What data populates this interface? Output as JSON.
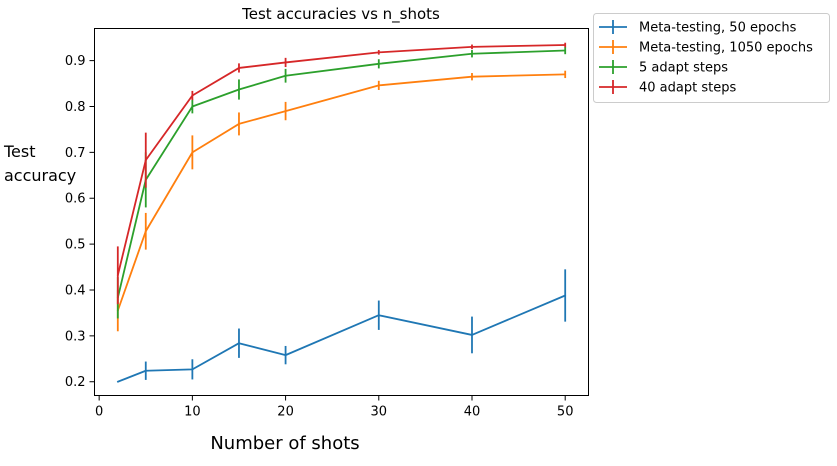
{
  "chart_data": {
    "type": "line",
    "title": "Test accuracies vs n_shots",
    "xlabel": "Number of shots",
    "ylabel_lines": [
      "Test",
      "accuracy"
    ],
    "xlim": [
      -0.5,
      52.5
    ],
    "ylim": [
      0.17,
      0.97
    ],
    "xticks": [
      0,
      10,
      20,
      30,
      40,
      50
    ],
    "yticks": [
      0.2,
      0.3,
      0.4,
      0.5,
      0.6,
      0.7,
      0.8,
      0.9
    ],
    "x": [
      2,
      5,
      10,
      15,
      20,
      30,
      40,
      50
    ],
    "grid": false,
    "legend_position": "outside-right",
    "series": [
      {
        "name": "Meta-testing, 50 epochs",
        "color": "#1f77b4",
        "values": [
          0.2,
          0.224,
          0.227,
          0.284,
          0.258,
          0.345,
          0.302,
          0.388
        ],
        "errors": [
          0.0,
          0.02,
          0.022,
          0.032,
          0.02,
          0.032,
          0.04,
          0.057
        ]
      },
      {
        "name": "Meta-testing, 1050 epochs",
        "color": "#ff7f0e",
        "values": [
          0.355,
          0.528,
          0.7,
          0.762,
          0.79,
          0.846,
          0.865,
          0.87
        ],
        "errors": [
          0.045,
          0.04,
          0.037,
          0.025,
          0.02,
          0.01,
          0.008,
          0.008
        ]
      },
      {
        "name": "5 adapt steps",
        "color": "#2ca02c",
        "values": [
          0.383,
          0.64,
          0.8,
          0.837,
          0.867,
          0.893,
          0.915,
          0.922
        ],
        "errors": [
          0.045,
          0.06,
          0.015,
          0.022,
          0.015,
          0.01,
          0.008,
          0.008
        ]
      },
      {
        "name": "40 adapt steps",
        "color": "#d62728",
        "values": [
          0.432,
          0.683,
          0.824,
          0.884,
          0.896,
          0.918,
          0.93,
          0.934
        ],
        "errors": [
          0.063,
          0.06,
          0.01,
          0.01,
          0.01,
          0.005,
          0.005,
          0.005
        ]
      }
    ]
  }
}
